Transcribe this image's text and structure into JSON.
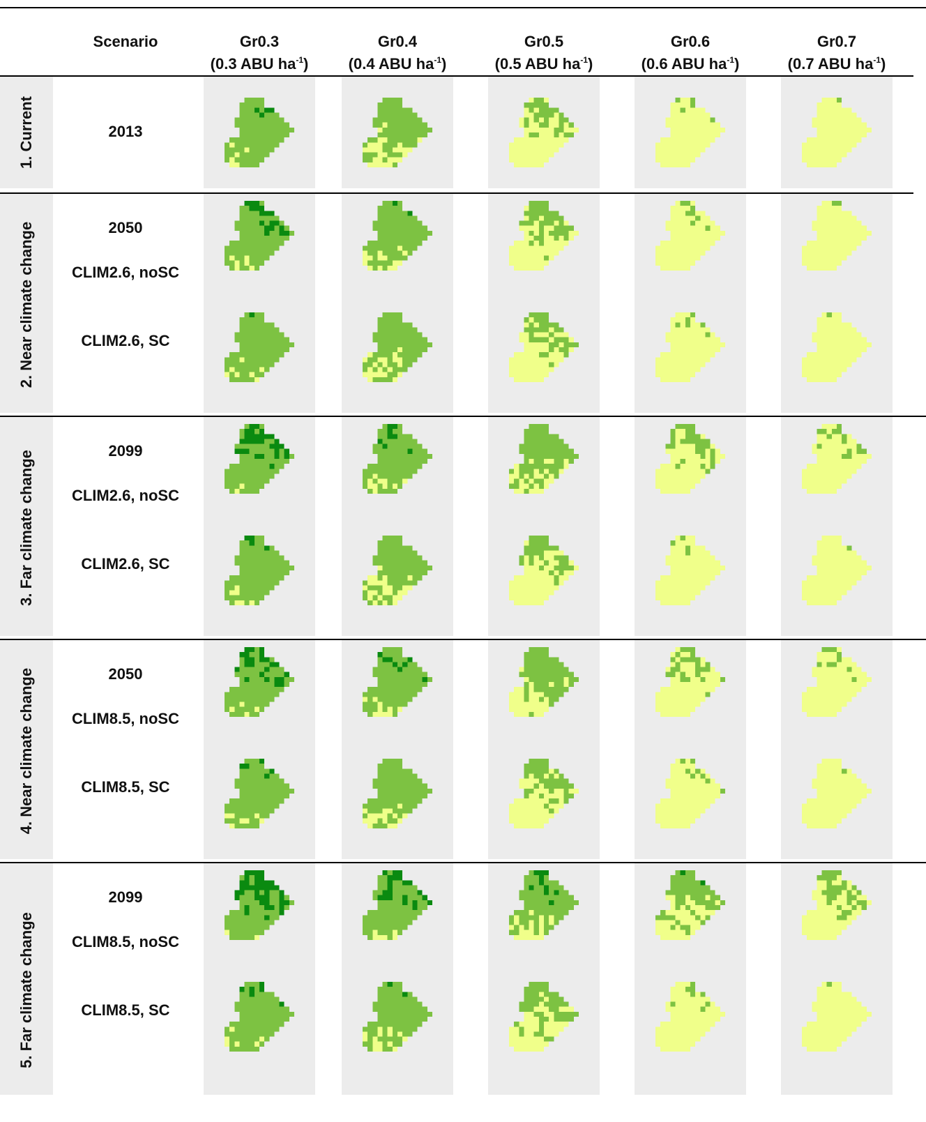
{
  "header": {
    "scenario_label": "Scenario",
    "columns": [
      {
        "code": "Gr0.3",
        "sub": "(0.3 ABU ha",
        "exp": "-1",
        "close": ")"
      },
      {
        "code": "Gr0.4",
        "sub": "(0.4 ABU ha",
        "exp": "-1",
        "close": ")"
      },
      {
        "code": "Gr0.5",
        "sub": "(0.5 ABU ha",
        "exp": "-1",
        "close": ")"
      },
      {
        "code": "Gr0.6",
        "sub": "(0.6 ABU ha",
        "exp": "-1",
        "close": ")"
      },
      {
        "code": "Gr0.7",
        "sub": "(0.7 ABU ha",
        "exp": "-1",
        "close": ")"
      }
    ]
  },
  "colors": {
    "light": "#f0ff8a",
    "medium": "#7dc242",
    "dark": "#0a8a10",
    "panel_bg": "#ececec"
  },
  "groups": [
    {
      "label": "1. Current",
      "year": "2013",
      "scenarios": []
    },
    {
      "label": "2. Near climate change",
      "year": "2050",
      "scenarios": [
        "CLIM2.6, noSC",
        "CLIM2.6, SC"
      ]
    },
    {
      "label": "3. Far climate change",
      "year": "2099",
      "scenarios": [
        "CLIM2.6, noSC",
        "CLIM2.6, SC"
      ]
    },
    {
      "label": "4. Near climate change",
      "year": "2050",
      "scenarios": [
        "CLIM8.5, noSC",
        "CLIM8.5, SC"
      ]
    },
    {
      "label": "5. Far climate change",
      "year": "2099",
      "scenarios": [
        "CLIM8.5, noSC",
        "CLIM8.5, SC"
      ]
    }
  ],
  "map_rows": [
    {
      "shares": [
        [
          0.05,
          0.92,
          0.03
        ],
        [
          0.25,
          0.75,
          0.0
        ],
        [
          0.72,
          0.28,
          0.0
        ],
        [
          0.96,
          0.04,
          0.0
        ],
        [
          0.99,
          0.01,
          0.0
        ]
      ]
    },
    {
      "shares": [
        [
          0.05,
          0.8,
          0.15
        ],
        [
          0.12,
          0.86,
          0.02
        ],
        [
          0.62,
          0.38,
          0.0
        ],
        [
          0.93,
          0.07,
          0.0
        ],
        [
          0.98,
          0.02,
          0.0
        ]
      ]
    },
    {
      "shares": [
        [
          0.06,
          0.93,
          0.01
        ],
        [
          0.18,
          0.82,
          0.0
        ],
        [
          0.66,
          0.34,
          0.0
        ],
        [
          0.95,
          0.05,
          0.0
        ],
        [
          0.99,
          0.01,
          0.0
        ]
      ]
    },
    {
      "shares": [
        [
          0.02,
          0.73,
          0.25
        ],
        [
          0.08,
          0.85,
          0.07
        ],
        [
          0.25,
          0.75,
          0.0
        ],
        [
          0.72,
          0.28,
          0.0
        ],
        [
          0.88,
          0.12,
          0.0
        ]
      ]
    },
    {
      "shares": [
        [
          0.05,
          0.92,
          0.03
        ],
        [
          0.22,
          0.78,
          0.0
        ],
        [
          0.68,
          0.32,
          0.0
        ],
        [
          0.97,
          0.03,
          0.0
        ],
        [
          0.99,
          0.01,
          0.0
        ]
      ]
    },
    {
      "shares": [
        [
          0.03,
          0.77,
          0.2
        ],
        [
          0.08,
          0.85,
          0.07
        ],
        [
          0.35,
          0.65,
          0.0
        ],
        [
          0.78,
          0.22,
          0.0
        ],
        [
          0.92,
          0.08,
          0.0
        ]
      ]
    },
    {
      "shares": [
        [
          0.06,
          0.9,
          0.04
        ],
        [
          0.15,
          0.85,
          0.0
        ],
        [
          0.62,
          0.38,
          0.0
        ],
        [
          0.93,
          0.07,
          0.0
        ],
        [
          0.99,
          0.01,
          0.0
        ]
      ]
    },
    {
      "shares": [
        [
          0.02,
          0.63,
          0.35
        ],
        [
          0.05,
          0.77,
          0.18
        ],
        [
          0.18,
          0.74,
          0.08
        ],
        [
          0.45,
          0.53,
          0.02
        ],
        [
          0.7,
          0.3,
          0.0
        ]
      ]
    },
    {
      "shares": [
        [
          0.05,
          0.9,
          0.05
        ],
        [
          0.12,
          0.86,
          0.02
        ],
        [
          0.52,
          0.48,
          0.0
        ],
        [
          0.93,
          0.07,
          0.0
        ],
        [
          0.99,
          0.01,
          0.0
        ]
      ]
    }
  ]
}
